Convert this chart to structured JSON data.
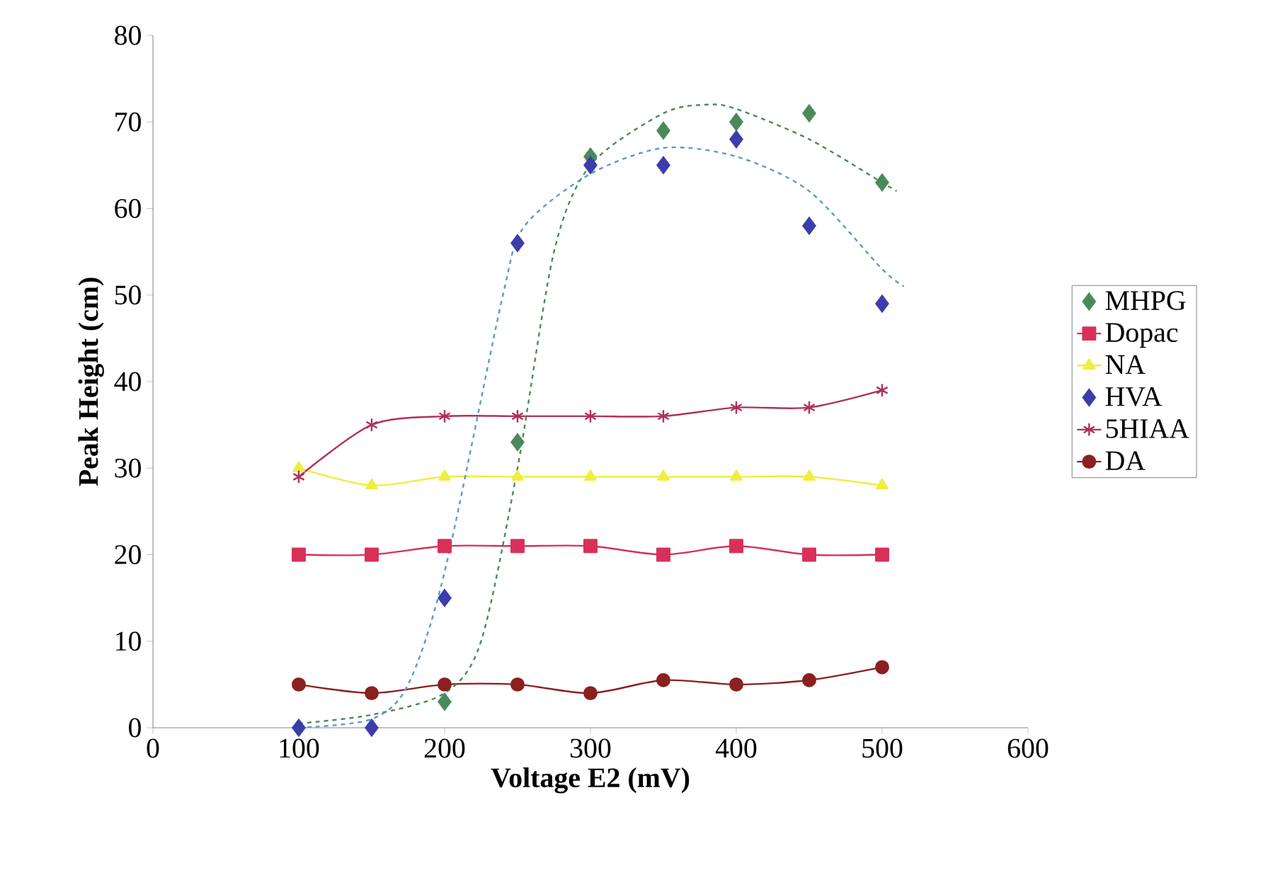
{
  "chart_data": {
    "type": "line",
    "xlabel": "Voltage E2 (mV)",
    "ylabel": "Peak Height (cm)",
    "xlim": [
      0,
      600
    ],
    "ylim": [
      0,
      80
    ],
    "xticks": [
      0,
      100,
      200,
      300,
      400,
      500,
      600
    ],
    "yticks": [
      0,
      10,
      20,
      30,
      40,
      50,
      60,
      70,
      80
    ],
    "legend": "right",
    "grid": false,
    "series": [
      {
        "name": "MHPG",
        "type": "scatter",
        "marker": "diamond",
        "color": "#4a8a5a",
        "x": [
          200,
          250,
          300,
          350,
          400,
          450,
          500
        ],
        "values": [
          3,
          33,
          66,
          69,
          70,
          71,
          63
        ]
      },
      {
        "name": "Dopac",
        "marker": "square",
        "line_style": "solid",
        "color": "#d9305a",
        "x": [
          100,
          150,
          200,
          250,
          300,
          350,
          400,
          450,
          500
        ],
        "values": [
          20,
          20,
          21,
          21,
          21,
          20,
          21,
          20,
          20
        ]
      },
      {
        "name": "NA",
        "marker": "triangle",
        "line_style": "solid",
        "color": "#eeee40",
        "x": [
          100,
          150,
          200,
          250,
          300,
          350,
          400,
          450,
          500
        ],
        "values": [
          30,
          28,
          29,
          29,
          29,
          29,
          29,
          29,
          28
        ]
      },
      {
        "name": "HVA",
        "type": "scatter",
        "marker": "diamond",
        "color": "#3c3caa",
        "x": [
          100,
          150,
          200,
          250,
          300,
          350,
          400,
          450,
          500
        ],
        "values": [
          0,
          0,
          15,
          56,
          65,
          65,
          68,
          58,
          49
        ]
      },
      {
        "name": "5HIAA",
        "marker": "cross",
        "line_style": "solid",
        "color": "#b0305a",
        "x": [
          100,
          150,
          200,
          250,
          300,
          350,
          400,
          450,
          500
        ],
        "values": [
          29,
          35,
          36,
          36,
          36,
          36,
          37,
          37,
          39
        ]
      },
      {
        "name": "DA",
        "marker": "circle",
        "line_style": "solid",
        "color": "#8b2020",
        "x": [
          100,
          150,
          200,
          250,
          300,
          350,
          400,
          450,
          500
        ],
        "values": [
          5,
          4,
          5,
          5,
          4,
          5.5,
          5,
          5.5,
          7
        ]
      },
      {
        "marker": "none",
        "line_style": "dashed",
        "color": "#4a8a5a",
        "x": [
          100,
          150,
          200,
          225,
          250,
          275,
          300,
          350,
          380,
          400,
          450,
          500,
          510
        ],
        "values": [
          0.5,
          1.5,
          4,
          10,
          30,
          55,
          65,
          71,
          72,
          71.5,
          68,
          63,
          62
        ]
      },
      {
        "marker": "none",
        "line_style": "dashed",
        "color": "#5a9acc",
        "x": [
          100,
          150,
          175,
          200,
          240,
          255,
          300,
          350,
          400,
          450,
          500,
          515
        ],
        "values": [
          0,
          1,
          5,
          18,
          50,
          58,
          64,
          67,
          66,
          62,
          53,
          51
        ]
      }
    ]
  }
}
